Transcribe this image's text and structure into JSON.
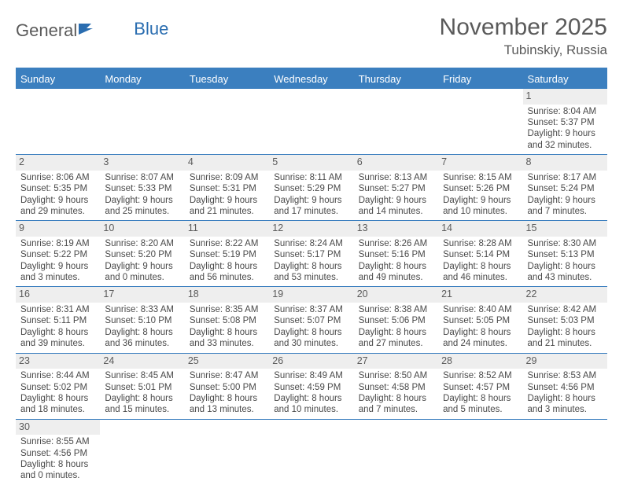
{
  "logo": {
    "text1": "General",
    "text2": "Blue"
  },
  "title": "November 2025",
  "location": "Tubinskiy, Russia",
  "colors": {
    "header_blue": "#3b7fbf",
    "daynum_bg": "#eeeeee",
    "text_gray": "#5a5a5a",
    "body_text": "#4a4a4a"
  },
  "typography": {
    "title_fontsize": 30,
    "subtitle_fontsize": 17,
    "dayname_fontsize": 13,
    "cell_fontsize": 11.5
  },
  "dayNames": [
    "Sunday",
    "Monday",
    "Tuesday",
    "Wednesday",
    "Thursday",
    "Friday",
    "Saturday"
  ],
  "weeks": [
    [
      null,
      null,
      null,
      null,
      null,
      null,
      {
        "n": "1",
        "sr": "Sunrise: 8:04 AM",
        "ss": "Sunset: 5:37 PM",
        "d1": "Daylight: 9 hours",
        "d2": "and 32 minutes."
      }
    ],
    [
      {
        "n": "2",
        "sr": "Sunrise: 8:06 AM",
        "ss": "Sunset: 5:35 PM",
        "d1": "Daylight: 9 hours",
        "d2": "and 29 minutes."
      },
      {
        "n": "3",
        "sr": "Sunrise: 8:07 AM",
        "ss": "Sunset: 5:33 PM",
        "d1": "Daylight: 9 hours",
        "d2": "and 25 minutes."
      },
      {
        "n": "4",
        "sr": "Sunrise: 8:09 AM",
        "ss": "Sunset: 5:31 PM",
        "d1": "Daylight: 9 hours",
        "d2": "and 21 minutes."
      },
      {
        "n": "5",
        "sr": "Sunrise: 8:11 AM",
        "ss": "Sunset: 5:29 PM",
        "d1": "Daylight: 9 hours",
        "d2": "and 17 minutes."
      },
      {
        "n": "6",
        "sr": "Sunrise: 8:13 AM",
        "ss": "Sunset: 5:27 PM",
        "d1": "Daylight: 9 hours",
        "d2": "and 14 minutes."
      },
      {
        "n": "7",
        "sr": "Sunrise: 8:15 AM",
        "ss": "Sunset: 5:26 PM",
        "d1": "Daylight: 9 hours",
        "d2": "and 10 minutes."
      },
      {
        "n": "8",
        "sr": "Sunrise: 8:17 AM",
        "ss": "Sunset: 5:24 PM",
        "d1": "Daylight: 9 hours",
        "d2": "and 7 minutes."
      }
    ],
    [
      {
        "n": "9",
        "sr": "Sunrise: 8:19 AM",
        "ss": "Sunset: 5:22 PM",
        "d1": "Daylight: 9 hours",
        "d2": "and 3 minutes."
      },
      {
        "n": "10",
        "sr": "Sunrise: 8:20 AM",
        "ss": "Sunset: 5:20 PM",
        "d1": "Daylight: 9 hours",
        "d2": "and 0 minutes."
      },
      {
        "n": "11",
        "sr": "Sunrise: 8:22 AM",
        "ss": "Sunset: 5:19 PM",
        "d1": "Daylight: 8 hours",
        "d2": "and 56 minutes."
      },
      {
        "n": "12",
        "sr": "Sunrise: 8:24 AM",
        "ss": "Sunset: 5:17 PM",
        "d1": "Daylight: 8 hours",
        "d2": "and 53 minutes."
      },
      {
        "n": "13",
        "sr": "Sunrise: 8:26 AM",
        "ss": "Sunset: 5:16 PM",
        "d1": "Daylight: 8 hours",
        "d2": "and 49 minutes."
      },
      {
        "n": "14",
        "sr": "Sunrise: 8:28 AM",
        "ss": "Sunset: 5:14 PM",
        "d1": "Daylight: 8 hours",
        "d2": "and 46 minutes."
      },
      {
        "n": "15",
        "sr": "Sunrise: 8:30 AM",
        "ss": "Sunset: 5:13 PM",
        "d1": "Daylight: 8 hours",
        "d2": "and 43 minutes."
      }
    ],
    [
      {
        "n": "16",
        "sr": "Sunrise: 8:31 AM",
        "ss": "Sunset: 5:11 PM",
        "d1": "Daylight: 8 hours",
        "d2": "and 39 minutes."
      },
      {
        "n": "17",
        "sr": "Sunrise: 8:33 AM",
        "ss": "Sunset: 5:10 PM",
        "d1": "Daylight: 8 hours",
        "d2": "and 36 minutes."
      },
      {
        "n": "18",
        "sr": "Sunrise: 8:35 AM",
        "ss": "Sunset: 5:08 PM",
        "d1": "Daylight: 8 hours",
        "d2": "and 33 minutes."
      },
      {
        "n": "19",
        "sr": "Sunrise: 8:37 AM",
        "ss": "Sunset: 5:07 PM",
        "d1": "Daylight: 8 hours",
        "d2": "and 30 minutes."
      },
      {
        "n": "20",
        "sr": "Sunrise: 8:38 AM",
        "ss": "Sunset: 5:06 PM",
        "d1": "Daylight: 8 hours",
        "d2": "and 27 minutes."
      },
      {
        "n": "21",
        "sr": "Sunrise: 8:40 AM",
        "ss": "Sunset: 5:05 PM",
        "d1": "Daylight: 8 hours",
        "d2": "and 24 minutes."
      },
      {
        "n": "22",
        "sr": "Sunrise: 8:42 AM",
        "ss": "Sunset: 5:03 PM",
        "d1": "Daylight: 8 hours",
        "d2": "and 21 minutes."
      }
    ],
    [
      {
        "n": "23",
        "sr": "Sunrise: 8:44 AM",
        "ss": "Sunset: 5:02 PM",
        "d1": "Daylight: 8 hours",
        "d2": "and 18 minutes."
      },
      {
        "n": "24",
        "sr": "Sunrise: 8:45 AM",
        "ss": "Sunset: 5:01 PM",
        "d1": "Daylight: 8 hours",
        "d2": "and 15 minutes."
      },
      {
        "n": "25",
        "sr": "Sunrise: 8:47 AM",
        "ss": "Sunset: 5:00 PM",
        "d1": "Daylight: 8 hours",
        "d2": "and 13 minutes."
      },
      {
        "n": "26",
        "sr": "Sunrise: 8:49 AM",
        "ss": "Sunset: 4:59 PM",
        "d1": "Daylight: 8 hours",
        "d2": "and 10 minutes."
      },
      {
        "n": "27",
        "sr": "Sunrise: 8:50 AM",
        "ss": "Sunset: 4:58 PM",
        "d1": "Daylight: 8 hours",
        "d2": "and 7 minutes."
      },
      {
        "n": "28",
        "sr": "Sunrise: 8:52 AM",
        "ss": "Sunset: 4:57 PM",
        "d1": "Daylight: 8 hours",
        "d2": "and 5 minutes."
      },
      {
        "n": "29",
        "sr": "Sunrise: 8:53 AM",
        "ss": "Sunset: 4:56 PM",
        "d1": "Daylight: 8 hours",
        "d2": "and 3 minutes."
      }
    ],
    [
      {
        "n": "30",
        "sr": "Sunrise: 8:55 AM",
        "ss": "Sunset: 4:56 PM",
        "d1": "Daylight: 8 hours",
        "d2": "and 0 minutes."
      },
      null,
      null,
      null,
      null,
      null,
      null
    ]
  ]
}
